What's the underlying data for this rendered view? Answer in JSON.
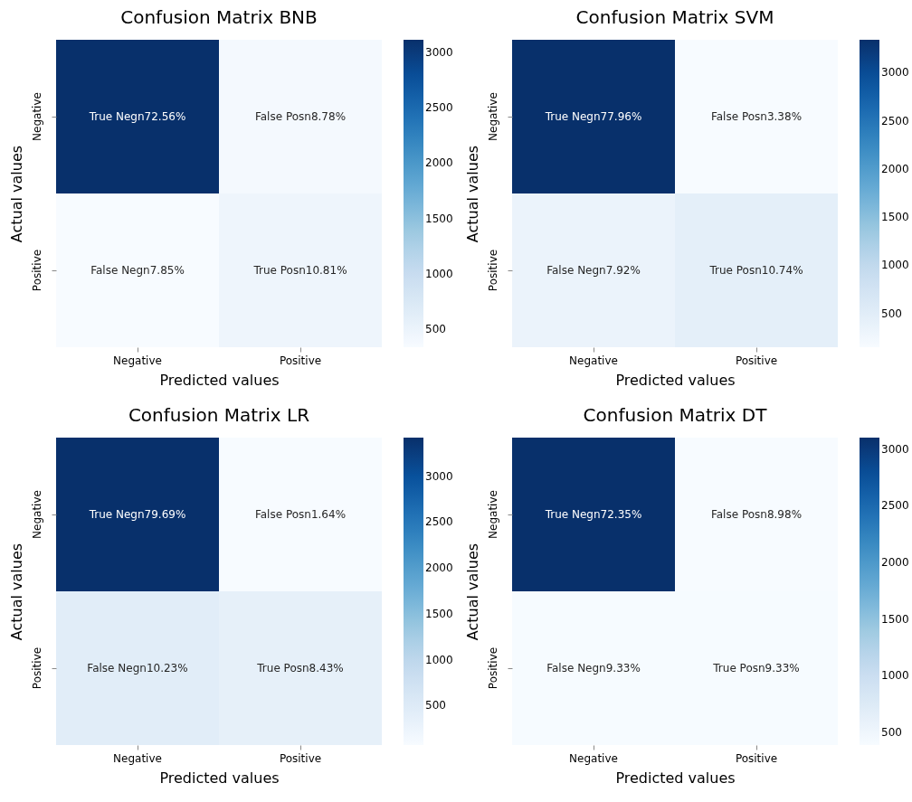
{
  "chart_data": [
    {
      "type": "heatmap",
      "title": "Confusion Matrix BNB",
      "xlabel": "Predicted values",
      "ylabel": "Actual values",
      "categories": [
        "Negative",
        "Positive"
      ],
      "y_categories": [
        "Negative",
        "Positive"
      ],
      "cells": [
        [
          3110,
          380
        ],
        [
          340,
          460
        ]
      ],
      "cell_labels": [
        [
          "True Negn72.56%",
          "False Posn8.78%"
        ],
        [
          "False Negn7.85%",
          "True Posn10.81%"
        ]
      ],
      "clim": [
        340,
        3110
      ],
      "cticks": [
        500,
        1000,
        1500,
        2000,
        2500,
        3000
      ]
    },
    {
      "type": "heatmap",
      "title": "Confusion Matrix SVM",
      "xlabel": "Predicted values",
      "ylabel": "Actual values",
      "categories": [
        "Negative",
        "Positive"
      ],
      "y_categories": [
        "Negative",
        "Positive"
      ],
      "cells": [
        [
          3340,
          150
        ],
        [
          340,
          460
        ]
      ],
      "cell_labels": [
        [
          "True Negn77.96%",
          "False Posn3.38%"
        ],
        [
          "False Negn7.92%",
          "True Posn10.74%"
        ]
      ],
      "clim": [
        150,
        3340
      ],
      "cticks": [
        500,
        1000,
        1500,
        2000,
        2500,
        3000
      ]
    },
    {
      "type": "heatmap",
      "title": "Confusion Matrix LR",
      "xlabel": "Predicted values",
      "ylabel": "Actual values",
      "categories": [
        "Negative",
        "Positive"
      ],
      "y_categories": [
        "Negative",
        "Positive"
      ],
      "cells": [
        [
          3420,
          70
        ],
        [
          440,
          360
        ]
      ],
      "cell_labels": [
        [
          "True Negn79.69%",
          "False Posn1.64%"
        ],
        [
          "False Negn10.23%",
          "True Posn8.43%"
        ]
      ],
      "clim": [
        70,
        3420
      ],
      "cticks": [
        500,
        1000,
        1500,
        2000,
        2500,
        3000
      ]
    },
    {
      "type": "heatmap",
      "title": "Confusion Matrix DT",
      "xlabel": "Predicted values",
      "ylabel": "Actual values",
      "categories": [
        "Negative",
        "Positive"
      ],
      "y_categories": [
        "Negative",
        "Positive"
      ],
      "cells": [
        [
          3100,
          390
        ],
        [
          400,
          400
        ]
      ],
      "cell_labels": [
        [
          "True Negn72.35%",
          "False Posn8.98%"
        ],
        [
          "False Negn9.33%",
          "True Posn9.33%"
        ]
      ],
      "clim": [
        390,
        3100
      ],
      "cticks": [
        500,
        1000,
        1500,
        2000,
        2500,
        3000
      ]
    }
  ]
}
